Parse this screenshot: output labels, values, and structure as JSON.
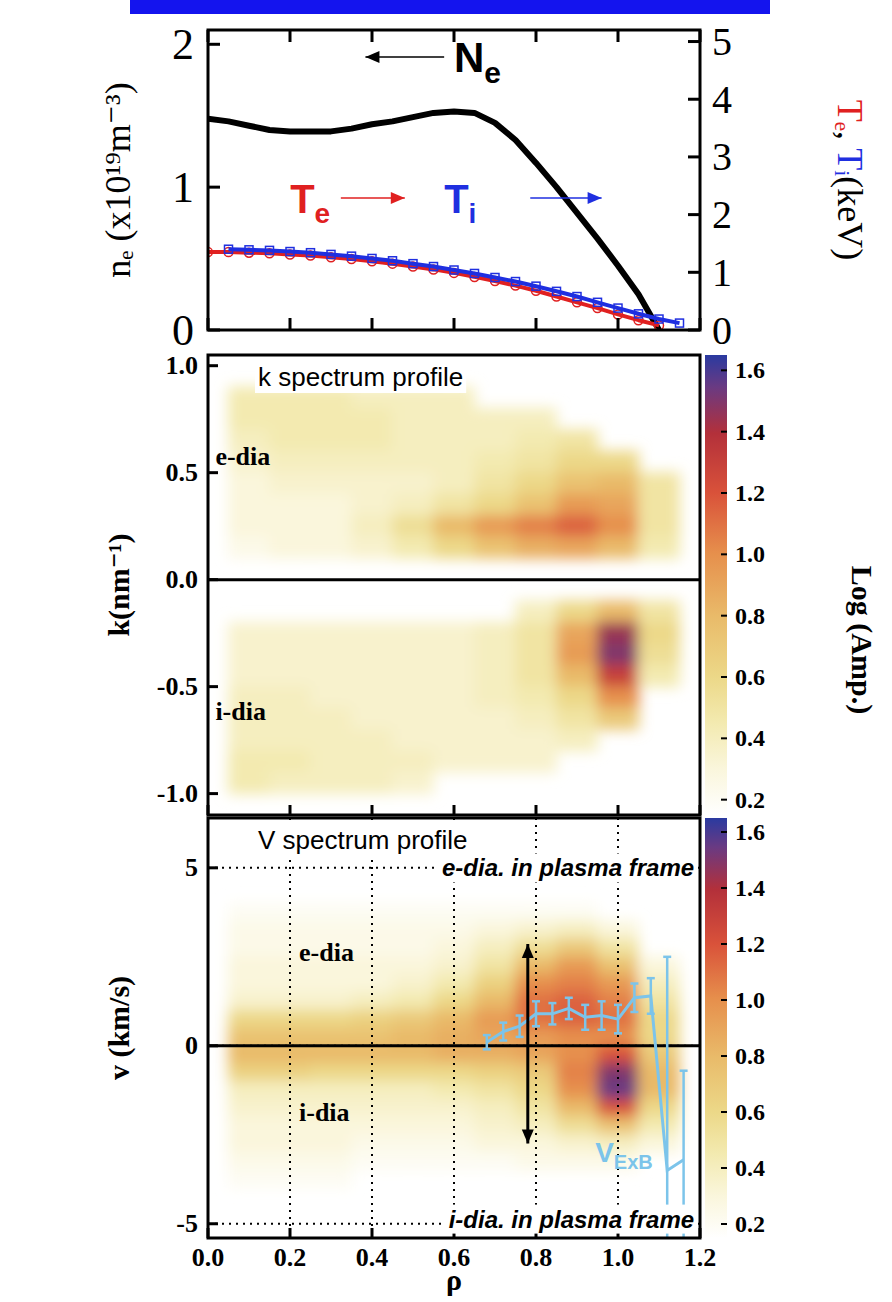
{
  "chart_data": [
    {
      "type": "line",
      "x": [
        0,
        0.05,
        0.1,
        0.15,
        0.2,
        0.25,
        0.3,
        0.35,
        0.4,
        0.45,
        0.5,
        0.55,
        0.6,
        0.65,
        0.7,
        0.75,
        0.8,
        0.85,
        0.9,
        0.95,
        1,
        1.05,
        1.1,
        1.15
      ],
      "xlim": [
        0,
        1.2
      ],
      "xticks": [
        0,
        0.2,
        0.4,
        0.6,
        0.8,
        1,
        1.2
      ],
      "ylim": [
        0,
        2.1
      ],
      "yticks": [
        0,
        1,
        2
      ],
      "y2lim": [
        0,
        5.2
      ],
      "y2ticks": [
        0,
        1,
        2,
        3,
        4,
        5
      ],
      "ylabel": "nₑ (x10¹⁹m⁻³)",
      "y2label": "Tₑ, Tᵢ(keV)",
      "tick_labels": "y",
      "series": [
        {
          "name": "Ne",
          "color": "#000000",
          "line_style": "solid",
          "marker": "none",
          "values": [
            1.48,
            1.46,
            1.43,
            1.4,
            1.39,
            1.39,
            1.39,
            1.41,
            1.44,
            1.46,
            1.49,
            1.52,
            1.53,
            1.52,
            1.45,
            1.33,
            1.17,
            1.0,
            0.82,
            0.64,
            0.45,
            0.25,
            0.0,
            null
          ]
        },
        {
          "name": "Te",
          "color": "#e02020",
          "axis": "y2",
          "line_style": "solid",
          "marker": "circle",
          "values": [
            1.35,
            1.35,
            1.34,
            1.33,
            1.31,
            1.29,
            1.26,
            1.23,
            1.19,
            1.15,
            1.1,
            1.05,
            0.99,
            0.92,
            0.85,
            0.77,
            0.68,
            0.58,
            0.48,
            0.38,
            0.27,
            0.17,
            0.08,
            null
          ]
        },
        {
          "name": "Ti",
          "color": "#1f2fe0",
          "axis": "y2",
          "line_style": "solid",
          "marker": "square",
          "values": [
            null,
            1.4,
            1.39,
            1.38,
            1.36,
            1.34,
            1.31,
            1.28,
            1.24,
            1.2,
            1.15,
            1.1,
            1.04,
            0.98,
            0.91,
            0.84,
            0.76,
            0.67,
            0.58,
            0.48,
            0.38,
            0.28,
            0.19,
            0.12
          ]
        }
      ]
    },
    {
      "type": "heatmap",
      "title": "k spectrum profile",
      "ylabel": "k(nm⁻¹)",
      "annotations": [
        "e-dia",
        "i-dia"
      ],
      "x": [
        0.1,
        0.2,
        0.3,
        0.4,
        0.5,
        0.6,
        0.7,
        0.8,
        0.9,
        1.0,
        1.1
      ],
      "y": [
        0.95,
        0.85,
        0.75,
        0.65,
        0.55,
        0.45,
        0.35,
        0.25,
        0.15,
        0.05,
        -0.05,
        -0.15,
        -0.25,
        -0.35,
        -0.45,
        -0.55,
        -0.65,
        -0.75,
        -0.85,
        -0.95
      ],
      "cells": [
        [
          null,
          null,
          null,
          null,
          null,
          null,
          null,
          null,
          null,
          null,
          null
        ],
        [
          0.45,
          0.45,
          0.45,
          0.4,
          0.4,
          0.4,
          null,
          null,
          null,
          null,
          null
        ],
        [
          0.45,
          0.45,
          0.45,
          0.45,
          0.4,
          0.4,
          0.4,
          0.4,
          null,
          null,
          null
        ],
        [
          0.4,
          0.45,
          0.45,
          0.45,
          0.4,
          0.4,
          0.4,
          0.45,
          0.5,
          null,
          null
        ],
        [
          0.35,
          0.4,
          0.4,
          0.4,
          0.4,
          0.4,
          0.45,
          0.5,
          0.6,
          0.6,
          null
        ],
        [
          0.3,
          0.35,
          0.35,
          0.35,
          0.35,
          0.4,
          0.5,
          0.6,
          0.75,
          0.8,
          0.5
        ],
        [
          0.3,
          0.3,
          0.3,
          0.35,
          0.4,
          0.5,
          0.6,
          0.75,
          0.95,
          0.9,
          0.5
        ],
        [
          0.3,
          0.3,
          0.3,
          0.4,
          0.55,
          0.8,
          0.95,
          1.05,
          1.15,
          1.0,
          0.5
        ],
        [
          0.25,
          0.3,
          0.3,
          0.35,
          0.45,
          0.6,
          0.75,
          0.85,
          0.9,
          0.8,
          0.45
        ],
        [
          null,
          null,
          null,
          null,
          null,
          null,
          null,
          null,
          null,
          null,
          null
        ],
        [
          null,
          null,
          null,
          null,
          null,
          null,
          null,
          null,
          null,
          null,
          null
        ],
        [
          null,
          null,
          null,
          null,
          null,
          null,
          null,
          0.4,
          0.6,
          0.8,
          0.5
        ],
        [
          0.35,
          0.35,
          0.35,
          0.35,
          0.35,
          0.35,
          0.4,
          0.5,
          0.9,
          1.45,
          0.6
        ],
        [
          0.35,
          0.35,
          0.35,
          0.35,
          0.35,
          0.35,
          0.4,
          0.5,
          0.95,
          1.5,
          0.55
        ],
        [
          0.35,
          0.35,
          0.35,
          0.35,
          0.35,
          0.35,
          0.4,
          0.5,
          0.8,
          1.3,
          0.45
        ],
        [
          0.4,
          0.4,
          0.35,
          0.35,
          0.35,
          0.35,
          0.4,
          0.45,
          0.6,
          1.0,
          null
        ],
        [
          0.4,
          0.4,
          0.4,
          0.35,
          0.35,
          0.35,
          0.35,
          0.4,
          0.5,
          0.7,
          null
        ],
        [
          0.4,
          0.4,
          0.4,
          0.4,
          0.35,
          0.35,
          0.35,
          0.35,
          0.4,
          null,
          null
        ],
        [
          0.45,
          0.45,
          0.4,
          0.4,
          0.4,
          0.35,
          0.35,
          0.35,
          null,
          null,
          null
        ],
        [
          0.45,
          0.4,
          0.4,
          0.4,
          0.35,
          null,
          null,
          null,
          null,
          null,
          null
        ]
      ],
      "xlim": [
        0,
        1.2
      ],
      "xticks": [
        0,
        0.2,
        0.4,
        0.6,
        0.8,
        1,
        1.2
      ],
      "ylim": [
        -1.1,
        1.05
      ],
      "yticks": [
        {
          "value": 1,
          "label": "1.0"
        },
        0.5,
        {
          "value": 0,
          "label": "0.0"
        },
        -0.5,
        {
          "value": -1,
          "label": "-1.0"
        }
      ],
      "tick_labels": "y",
      "colorbar": {
        "range": [
          0.15,
          1.65
        ],
        "ticks": [
          1.6,
          1.4,
          1.2,
          {
            "value": 1,
            "label": "1.0"
          },
          0.8,
          0.6,
          0.4,
          0.2
        ]
      }
    },
    {
      "type": "heatmap",
      "title": "V spectrum profile",
      "xlabel": "ρ",
      "ylabel": "v (km/s)",
      "annotations": [
        "e-dia",
        "i-dia",
        "e-dia. in plasma frame",
        "i-dia. in plasma frame"
      ],
      "x": [
        0.1,
        0.2,
        0.3,
        0.4,
        0.5,
        0.6,
        0.7,
        0.8,
        0.9,
        1.0,
        1.1
      ],
      "y": [
        3.75,
        3.25,
        2.75,
        2.25,
        1.75,
        1.25,
        0.75,
        0.25,
        -0.25,
        -0.75,
        -1.25,
        -1.75,
        -2.25,
        -2.75,
        -3.25,
        -3.75
      ],
      "cells": [
        [
          0.2,
          0.2,
          0.2,
          0.2,
          0.2,
          0.2,
          0.2,
          0.2,
          0.2,
          null,
          null
        ],
        [
          0.25,
          0.25,
          0.25,
          0.25,
          0.25,
          0.25,
          0.3,
          0.35,
          0.4,
          0.3,
          null
        ],
        [
          0.25,
          0.25,
          0.25,
          0.25,
          0.25,
          0.3,
          0.4,
          0.55,
          0.7,
          0.5,
          null
        ],
        [
          0.3,
          0.3,
          0.3,
          0.3,
          0.3,
          0.35,
          0.5,
          0.8,
          0.95,
          0.75,
          0.3
        ],
        [
          0.3,
          0.3,
          0.3,
          0.3,
          0.35,
          0.45,
          0.65,
          1.0,
          1.05,
          0.95,
          0.4
        ],
        [
          0.35,
          0.35,
          0.35,
          0.4,
          0.45,
          0.6,
          0.8,
          1.1,
          1.15,
          1.05,
          0.5
        ],
        [
          0.6,
          0.6,
          0.6,
          0.65,
          0.7,
          0.8,
          0.95,
          1.1,
          1.15,
          1.1,
          0.6
        ],
        [
          0.75,
          0.75,
          0.75,
          0.75,
          0.8,
          0.85,
          0.9,
          0.95,
          1.0,
          1.0,
          0.6
        ],
        [
          0.8,
          0.8,
          0.8,
          0.8,
          0.8,
          0.85,
          0.85,
          0.9,
          1.0,
          1.2,
          0.7
        ],
        [
          0.65,
          0.65,
          0.6,
          0.6,
          0.6,
          0.6,
          0.65,
          0.7,
          1.05,
          1.5,
          0.8
        ],
        [
          0.4,
          0.4,
          0.4,
          0.4,
          0.4,
          0.45,
          0.5,
          0.6,
          1.0,
          1.55,
          0.8
        ],
        [
          0.35,
          0.35,
          0.35,
          0.35,
          0.35,
          0.35,
          0.4,
          0.5,
          0.8,
          1.2,
          0.6
        ],
        [
          0.3,
          0.3,
          0.3,
          0.3,
          0.3,
          0.3,
          0.35,
          0.4,
          0.55,
          0.75,
          0.45
        ],
        [
          0.3,
          0.3,
          0.3,
          0.25,
          0.25,
          0.25,
          0.3,
          0.3,
          0.35,
          0.4,
          0.3
        ],
        [
          0.25,
          0.25,
          0.25,
          0.2,
          0.2,
          0.2,
          0.2,
          0.25,
          0.25,
          0.25,
          null
        ],
        [
          0.2,
          0.2,
          0.2,
          null,
          null,
          null,
          null,
          null,
          null,
          null,
          null
        ]
      ],
      "xlim": [
        0,
        1.2
      ],
      "xticks": [
        {
          "value": 0,
          "label": "0.0"
        },
        0.2,
        0.4,
        0.6,
        0.8,
        {
          "value": 1,
          "label": "1.0"
        },
        1.2
      ],
      "ylim": [
        -5.4,
        6.4
      ],
      "yticks": [
        5,
        0,
        -5
      ],
      "grid": true,
      "colorbar": {
        "range": [
          0.15,
          1.65
        ],
        "ticks": [
          1.6,
          1.4,
          1.2,
          {
            "value": 1,
            "label": "1.0"
          },
          0.8,
          0.6,
          0.4,
          0.2
        ],
        "label": "Log (Amp.)"
      },
      "series": [
        {
          "name": "VExB",
          "type": "line",
          "color": "#7cc4ea",
          "marker": "none",
          "x": [
            0.68,
            0.72,
            0.76,
            0.8,
            0.84,
            0.88,
            0.92,
            0.96,
            1.0,
            1.04,
            1.08,
            1.12,
            1.16
          ],
          "values": [
            0.1,
            0.4,
            0.55,
            0.9,
            0.9,
            1.05,
            0.8,
            0.85,
            0.75,
            1.35,
            1.4,
            -3.5,
            -3.2
          ],
          "errors": [
            0.2,
            0.25,
            0.3,
            0.35,
            0.3,
            0.3,
            0.35,
            0.4,
            0.4,
            0.4,
            0.5,
            6,
            2.5
          ]
        }
      ]
    }
  ]
}
